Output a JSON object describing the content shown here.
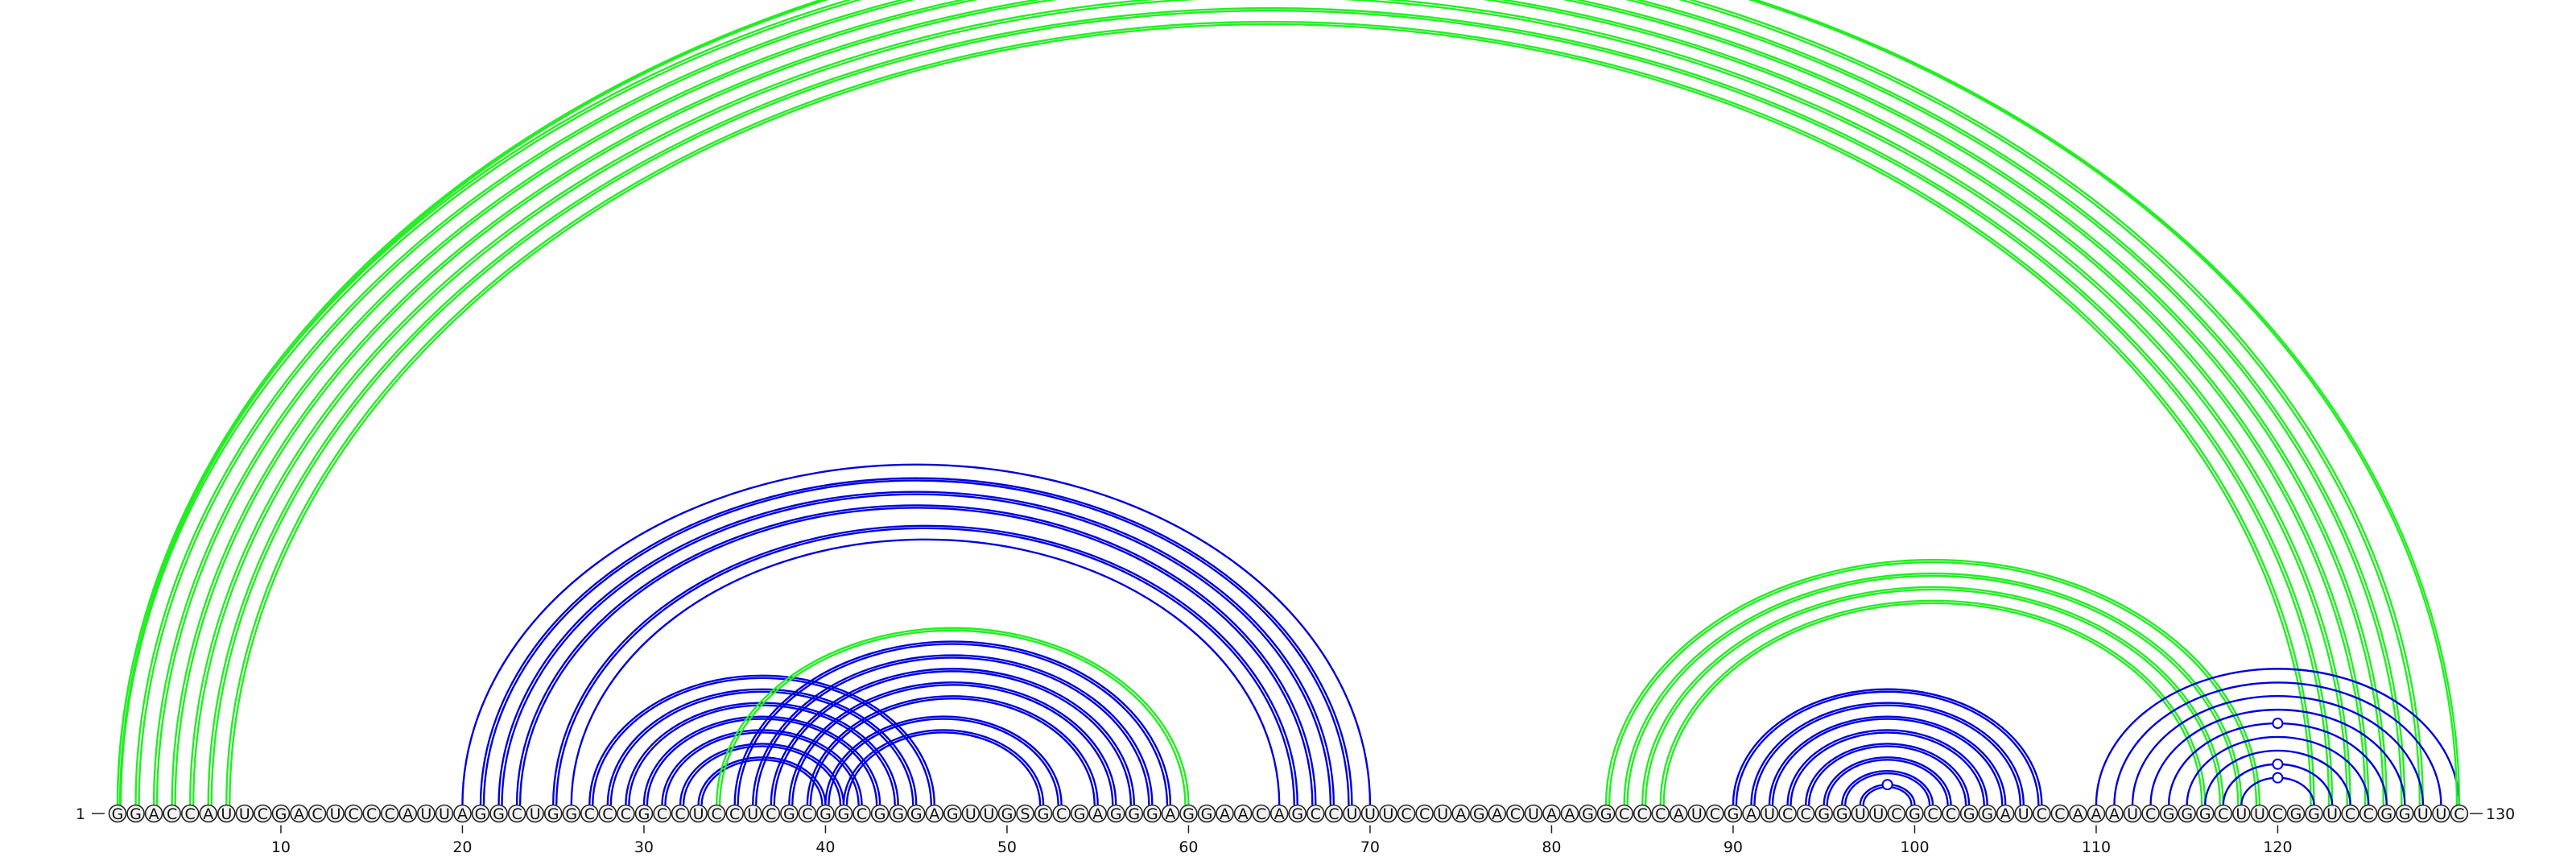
{
  "chart_data": {
    "type": "arc-diagram",
    "length": 130,
    "sequence": "GGACCAUUCGACUCCCAUUAGGCUGGCCCGCCUCCUCGCGGCGGGAGUUGSGCGAGGGAGGAACAGCCUUUCCUAGACUAAGGCCCAUCGAUCCGGUUCGCCGGAUCCAAAUCGGGCUUCGGUCCGGUUC",
    "start_label": "1",
    "end_label": "130",
    "ticks": [
      10,
      20,
      30,
      40,
      50,
      60,
      70,
      80,
      90,
      100,
      110,
      120
    ],
    "colors": {
      "paired": "#0000dd",
      "pseudoknot": "#22ee22"
    },
    "arcs": [
      {
        "i": 1,
        "j": 128,
        "color": "green",
        "double": true
      },
      {
        "i": 2,
        "j": 127,
        "color": "green",
        "double": true
      },
      {
        "i": 3,
        "j": 126,
        "color": "green",
        "double": true
      },
      {
        "i": 4,
        "j": 125,
        "color": "green",
        "double": true
      },
      {
        "i": 5,
        "j": 124,
        "color": "green",
        "double": true
      },
      {
        "i": 6,
        "j": 123,
        "color": "green",
        "double": true
      },
      {
        "i": 7,
        "j": 122,
        "color": "green",
        "double": true
      },
      {
        "i": 20,
        "j": 70,
        "color": "blue",
        "double": false
      },
      {
        "i": 21,
        "j": 69,
        "color": "blue",
        "double": true
      },
      {
        "i": 22,
        "j": 68,
        "color": "blue",
        "double": true
      },
      {
        "i": 23,
        "j": 67,
        "color": "blue",
        "double": true
      },
      {
        "i": 25,
        "j": 66,
        "color": "blue",
        "double": true
      },
      {
        "i": 26,
        "j": 65,
        "color": "blue",
        "double": false
      },
      {
        "i": 27,
        "j": 46,
        "color": "blue",
        "double": true
      },
      {
        "i": 28,
        "j": 45,
        "color": "blue",
        "double": true
      },
      {
        "i": 29,
        "j": 44,
        "color": "blue",
        "double": true
      },
      {
        "i": 30,
        "j": 43,
        "color": "blue",
        "double": true
      },
      {
        "i": 31,
        "j": 42,
        "color": "blue",
        "double": true
      },
      {
        "i": 32,
        "j": 41,
        "color": "blue",
        "double": true
      },
      {
        "i": 33,
        "j": 40,
        "color": "blue",
        "double": true
      },
      {
        "i": 34,
        "j": 60,
        "color": "green",
        "double": true
      },
      {
        "i": 35,
        "j": 59,
        "color": "blue",
        "double": true
      },
      {
        "i": 36,
        "j": 58,
        "color": "blue",
        "double": true
      },
      {
        "i": 37,
        "j": 57,
        "color": "blue",
        "double": true
      },
      {
        "i": 38,
        "j": 56,
        "color": "blue",
        "double": true
      },
      {
        "i": 39,
        "j": 55,
        "color": "blue",
        "double": true
      },
      {
        "i": 40,
        "j": 53,
        "color": "blue",
        "double": true
      },
      {
        "i": 41,
        "j": 52,
        "color": "blue",
        "double": true
      },
      {
        "i": 83,
        "j": 119,
        "color": "green",
        "double": true
      },
      {
        "i": 84,
        "j": 118,
        "color": "green",
        "double": true
      },
      {
        "i": 85,
        "j": 117,
        "color": "green",
        "double": true
      },
      {
        "i": 86,
        "j": 116,
        "color": "green",
        "double": true
      },
      {
        "i": 90,
        "j": 107,
        "color": "blue",
        "double": true
      },
      {
        "i": 91,
        "j": 106,
        "color": "blue",
        "double": true
      },
      {
        "i": 92,
        "j": 105,
        "color": "blue",
        "double": true
      },
      {
        "i": 93,
        "j": 104,
        "color": "blue",
        "double": true
      },
      {
        "i": 94,
        "j": 103,
        "color": "blue",
        "double": true
      },
      {
        "i": 95,
        "j": 102,
        "color": "blue",
        "double": true
      },
      {
        "i": 96,
        "j": 101,
        "color": "blue",
        "double": true
      },
      {
        "i": 97,
        "j": 100,
        "color": "blue",
        "double": true,
        "marker": true
      },
      {
        "i": 110,
        "j": 130,
        "color": "blue",
        "double": false
      },
      {
        "i": 111,
        "j": 129,
        "color": "blue",
        "double": false
      },
      {
        "i": 112,
        "j": 128,
        "color": "blue",
        "double": false
      },
      {
        "i": 113,
        "j": 127,
        "color": "blue",
        "double": false
      },
      {
        "i": 114,
        "j": 126,
        "color": "blue",
        "double": false,
        "marker": true
      },
      {
        "i": 115,
        "j": 125,
        "color": "blue",
        "double": false
      },
      {
        "i": 116,
        "j": 124,
        "color": "blue",
        "double": false
      },
      {
        "i": 117,
        "j": 123,
        "color": "blue",
        "double": false,
        "marker": true
      },
      {
        "i": 118,
        "j": 122,
        "color": "blue",
        "double": false,
        "marker": true
      }
    ],
    "top_marker_arc": {
      "i": 1,
      "j": 130
    }
  }
}
